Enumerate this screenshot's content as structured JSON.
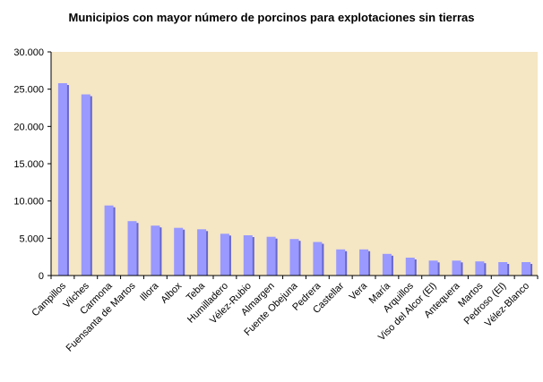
{
  "chart_data": {
    "type": "bar",
    "title": "Municipios con  mayor número de porcinos para explotaciones sin tierras",
    "xlabel": "",
    "ylabel": "",
    "ylim": [
      0,
      30000
    ],
    "yticks": [
      0,
      5000,
      10000,
      15000,
      20000,
      25000,
      30000
    ],
    "ytick_labels": [
      "0",
      "5.000",
      "10.000",
      "15.000",
      "20.000",
      "25.000",
      "30.000"
    ],
    "grid": false,
    "legend": "none",
    "colors": {
      "plot_background": "#F5E6C4",
      "bar": "#9999FF",
      "bar_shadow": "#6666CC",
      "axis": "#000000"
    },
    "categories": [
      "Campillos",
      "Vilches",
      "Carmona",
      "Fuensanta de Martos",
      "Illora",
      "Albox",
      "Teba",
      "Humilladero",
      "Vélez-Rubio",
      "Almargen",
      "Fuente Obejuna",
      "Pedrera",
      "Castellar",
      "Vera",
      "María",
      "Arquillos",
      "Viso del Alcor (El)",
      "Antequera",
      "Martos",
      "Pedroso (El)",
      "Vélez-Blanco"
    ],
    "values": [
      25800,
      24300,
      9400,
      7300,
      6700,
      6400,
      6200,
      5600,
      5400,
      5200,
      4900,
      4500,
      3500,
      3500,
      2900,
      2400,
      2000,
      2000,
      1900,
      1800,
      1800
    ]
  }
}
